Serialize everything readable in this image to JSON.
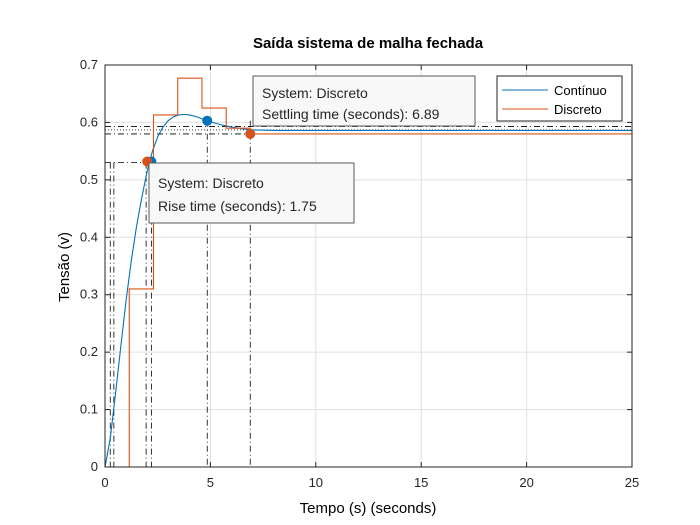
{
  "chart_data": {
    "type": "line",
    "title": "Saída sistema de malha fechada",
    "xlabel": "Tempo (s) (seconds)",
    "ylabel": "Tensão (v)",
    "xlim": [
      0,
      25
    ],
    "ylim": [
      0,
      0.7
    ],
    "xticks": [
      0,
      5,
      10,
      15,
      20,
      25
    ],
    "yticks": [
      0,
      0.1,
      0.2,
      0.3,
      0.4,
      0.5,
      0.6,
      0.7
    ],
    "grid": true,
    "legend_position": "top-right",
    "colors": {
      "continuo": "#0072bd",
      "discreto": "#d95319",
      "axes": "#262626",
      "grid": "#dfdfdf"
    },
    "series": [
      {
        "name": "Contínuo",
        "style": "line",
        "x": [
          0,
          0.25,
          0.5,
          0.75,
          1.0,
          1.25,
          1.5,
          1.75,
          2.0,
          2.25,
          2.5,
          2.75,
          3.0,
          3.25,
          3.5,
          3.75,
          4.0,
          4.25,
          4.5,
          4.75,
          5.0,
          5.5,
          6.0,
          6.5,
          7.0,
          8.0,
          9.0,
          10,
          12,
          15,
          20,
          25
        ],
        "y": [
          0,
          0.05,
          0.128,
          0.21,
          0.29,
          0.36,
          0.42,
          0.47,
          0.515,
          0.55,
          0.575,
          0.592,
          0.603,
          0.61,
          0.613,
          0.614,
          0.613,
          0.611,
          0.608,
          0.604,
          0.601,
          0.596,
          0.592,
          0.589,
          0.587,
          0.586,
          0.586,
          0.586,
          0.586,
          0.586,
          0.586,
          0.586
        ]
      },
      {
        "name": "Discreto",
        "style": "stairs",
        "x": [
          0,
          1.15,
          2.3,
          3.45,
          4.6,
          5.75,
          6.9,
          8.05,
          25
        ],
        "y": [
          0,
          0.31,
          0.613,
          0.677,
          0.625,
          0.59,
          0.58,
          0.58,
          0.58
        ]
      }
    ],
    "reference_lines": {
      "settled_band": [
        0.58,
        0.587,
        0.593
      ],
      "rise_level": 0.53,
      "rise_verticals_x": [
        0.25,
        0.42,
        1.95,
        2.2
      ],
      "settling_verticals_x": [
        4.85,
        6.89
      ]
    },
    "markers": [
      {
        "series": "Contínuo",
        "x": 2.2,
        "y": 0.532
      },
      {
        "series": "Contínuo",
        "x": 4.85,
        "y": 0.603
      },
      {
        "series": "Discreto",
        "x": 2.0,
        "y": 0.532
      },
      {
        "series": "Discreto",
        "x": 6.89,
        "y": 0.58
      }
    ],
    "datatips": [
      {
        "line1": "System: Discreto",
        "line2": "Settling time (seconds): 6.89"
      },
      {
        "line1": "System: Discreto",
        "line2": "Rise time (seconds): 1.75"
      }
    ]
  }
}
